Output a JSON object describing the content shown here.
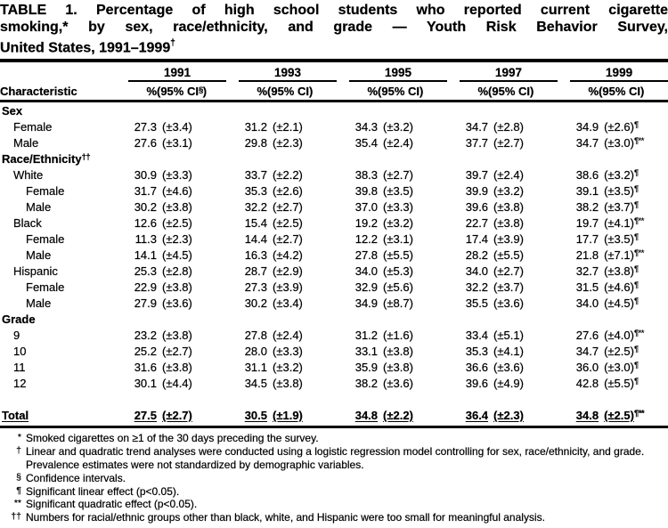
{
  "colors": {
    "text": "#000000",
    "background": "#ffffff",
    "rules": "#000000"
  },
  "document": {
    "title": {
      "line1": "TABLE 1. Percentage of high school students who reported current cigarette",
      "line2": "smoking,* by sex, race/ethnicity, and grade — Youth Risk Behavior Survey,",
      "line3": "United States, 1991–1999",
      "line3_superscript": "†"
    },
    "table": {
      "characteristic_header": "Characteristic",
      "year_groups": [
        {
          "year": "1991",
          "pct_label": "%",
          "ci_label_pre": "(95% CI",
          "ci_label_sup": "§",
          "ci_label_post": ")"
        },
        {
          "year": "1993",
          "pct_label": "%",
          "ci_label_pre": "(95% CI",
          "ci_label_sup": "",
          "ci_label_post": ")"
        },
        {
          "year": "1995",
          "pct_label": "%",
          "ci_label_pre": "(95% CI",
          "ci_label_sup": "",
          "ci_label_post": ")"
        },
        {
          "year": "1997",
          "pct_label": "%",
          "ci_label_pre": "(95% CI",
          "ci_label_sup": "",
          "ci_label_post": ")"
        },
        {
          "year": "1999",
          "pct_label": "%",
          "ci_label_pre": "(95% CI",
          "ci_label_sup": "",
          "ci_label_post": ")"
        }
      ],
      "rows": [
        {
          "type": "section",
          "label": "Sex",
          "label_sup": ""
        },
        {
          "type": "data",
          "label": "Female",
          "indent": 1,
          "cells": [
            [
              "27.3",
              "(±3.4)",
              ""
            ],
            [
              "31.2",
              "(±2.1)",
              ""
            ],
            [
              "34.3",
              "(±3.2)",
              ""
            ],
            [
              "34.7",
              "(±2.8)",
              ""
            ],
            [
              "34.9",
              "(±2.6)",
              "¶"
            ]
          ]
        },
        {
          "type": "data",
          "label": "Male",
          "indent": 1,
          "cells": [
            [
              "27.6",
              "(±3.1)",
              ""
            ],
            [
              "29.8",
              "(±2.3)",
              ""
            ],
            [
              "35.4",
              "(±2.4)",
              ""
            ],
            [
              "37.7",
              "(±2.7)",
              ""
            ],
            [
              "34.7",
              "(±3.0)",
              "¶**"
            ]
          ]
        },
        {
          "type": "section",
          "label": "Race/Ethnicity",
          "label_sup": "††"
        },
        {
          "type": "data",
          "label": "White",
          "indent": 1,
          "cells": [
            [
              "30.9",
              "(±3.3)",
              ""
            ],
            [
              "33.7",
              "(±2.2)",
              ""
            ],
            [
              "38.3",
              "(±2.7)",
              ""
            ],
            [
              "39.7",
              "(±2.4)",
              ""
            ],
            [
              "38.6",
              "(±3.2)",
              "¶"
            ]
          ]
        },
        {
          "type": "data",
          "label": "Female",
          "indent": 2,
          "cells": [
            [
              "31.7",
              "(±4.6)",
              ""
            ],
            [
              "35.3",
              "(±2.6)",
              ""
            ],
            [
              "39.8",
              "(±3.5)",
              ""
            ],
            [
              "39.9",
              "(±3.2)",
              ""
            ],
            [
              "39.1",
              "(±3.5)",
              "¶"
            ]
          ]
        },
        {
          "type": "data",
          "label": "Male",
          "indent": 2,
          "cells": [
            [
              "30.2",
              "(±3.8)",
              ""
            ],
            [
              "32.2",
              "(±2.7)",
              ""
            ],
            [
              "37.0",
              "(±3.3)",
              ""
            ],
            [
              "39.6",
              "(±3.8)",
              ""
            ],
            [
              "38.2",
              "(±3.7)",
              "¶"
            ]
          ]
        },
        {
          "type": "data",
          "label": "Black",
          "indent": 1,
          "cells": [
            [
              "12.6",
              "(±2.5)",
              ""
            ],
            [
              "15.4",
              "(±2.5)",
              ""
            ],
            [
              "19.2",
              "(±3.2)",
              ""
            ],
            [
              "22.7",
              "(±3.8)",
              ""
            ],
            [
              "19.7",
              "(±4.1)",
              "¶**"
            ]
          ]
        },
        {
          "type": "data",
          "label": "Female",
          "indent": 2,
          "cells": [
            [
              "11.3",
              "(±2.3)",
              ""
            ],
            [
              "14.4",
              "(±2.7)",
              ""
            ],
            [
              "12.2",
              "(±3.1)",
              ""
            ],
            [
              "17.4",
              "(±3.9)",
              ""
            ],
            [
              "17.7",
              "(±3.5)",
              "¶"
            ]
          ]
        },
        {
          "type": "data",
          "label": "Male",
          "indent": 2,
          "cells": [
            [
              "14.1",
              "(±4.5)",
              ""
            ],
            [
              "16.3",
              "(±4.2)",
              ""
            ],
            [
              "27.8",
              "(±5.5)",
              ""
            ],
            [
              "28.2",
              "(±5.5)",
              ""
            ],
            [
              "21.8",
              "(±7.1)",
              "¶**"
            ]
          ]
        },
        {
          "type": "data",
          "label": "Hispanic",
          "indent": 1,
          "cells": [
            [
              "25.3",
              "(±2.8)",
              ""
            ],
            [
              "28.7",
              "(±2.9)",
              ""
            ],
            [
              "34.0",
              "(±5.3)",
              ""
            ],
            [
              "34.0",
              "(±2.7)",
              ""
            ],
            [
              "32.7",
              "(±3.8)",
              "¶"
            ]
          ]
        },
        {
          "type": "data",
          "label": "Female",
          "indent": 2,
          "cells": [
            [
              "22.9",
              "(±3.8)",
              ""
            ],
            [
              "27.3",
              "(±3.9)",
              ""
            ],
            [
              "32.9",
              "(±5.6)",
              ""
            ],
            [
              "32.2",
              "(±3.7)",
              ""
            ],
            [
              "31.5",
              "(±4.6)",
              "¶"
            ]
          ]
        },
        {
          "type": "data",
          "label": "Male",
          "indent": 2,
          "cells": [
            [
              "27.9",
              "(±3.6)",
              ""
            ],
            [
              "30.2",
              "(±3.4)",
              ""
            ],
            [
              "34.9",
              "(±8.7)",
              ""
            ],
            [
              "35.5",
              "(±3.6)",
              ""
            ],
            [
              "34.0",
              "(±4.5)",
              "¶"
            ]
          ]
        },
        {
          "type": "section",
          "label": "Grade",
          "label_sup": ""
        },
        {
          "type": "data",
          "label": "9",
          "indent": 1,
          "cells": [
            [
              "23.2",
              "(±3.8)",
              ""
            ],
            [
              "27.8",
              "(±2.4)",
              ""
            ],
            [
              "31.2",
              "(±1.6)",
              ""
            ],
            [
              "33.4",
              "(±5.1)",
              ""
            ],
            [
              "27.6",
              "(±4.0)",
              "¶**"
            ]
          ]
        },
        {
          "type": "data",
          "label": "10",
          "indent": 1,
          "cells": [
            [
              "25.2",
              "(±2.7)",
              ""
            ],
            [
              "28.0",
              "(±3.3)",
              ""
            ],
            [
              "33.1",
              "(±3.8)",
              ""
            ],
            [
              "35.3",
              "(±4.1)",
              ""
            ],
            [
              "34.7",
              "(±2.5)",
              "¶"
            ]
          ]
        },
        {
          "type": "data",
          "label": "11",
          "indent": 1,
          "cells": [
            [
              "31.6",
              "(±3.8)",
              ""
            ],
            [
              "31.1",
              "(±3.2)",
              ""
            ],
            [
              "35.9",
              "(±3.8)",
              ""
            ],
            [
              "36.6",
              "(±3.6)",
              ""
            ],
            [
              "36.0",
              "(±3.0)",
              "¶"
            ]
          ]
        },
        {
          "type": "data",
          "label": "12",
          "indent": 1,
          "cells": [
            [
              "30.1",
              "(±4.4)",
              ""
            ],
            [
              "34.5",
              "(±3.8)",
              ""
            ],
            [
              "38.2",
              "(±3.6)",
              ""
            ],
            [
              "39.6",
              "(±4.9)",
              ""
            ],
            [
              "42.8",
              "(±5.5)",
              "¶"
            ]
          ]
        },
        {
          "type": "spacer"
        },
        {
          "type": "total",
          "label": "Total",
          "indent": 0,
          "cells": [
            [
              "27.5",
              "(±2.7)",
              ""
            ],
            [
              "30.5",
              "(±1.9)",
              ""
            ],
            [
              "34.8",
              "(±2.2)",
              ""
            ],
            [
              "36.4",
              "(±2.3)",
              ""
            ],
            [
              "34.8",
              "(±2.5)",
              "¶**"
            ]
          ]
        }
      ]
    },
    "footnotes": [
      {
        "marker": "*",
        "text": "Smoked cigarettes on ≥1 of the 30 days preceding the survey."
      },
      {
        "marker": "†",
        "text": "Linear and quadratic trend analyses were conducted using a logistic regression model controlling for sex, race/ethnicity, and grade.  Prevalence estimates were not standardized by demographic variables."
      },
      {
        "marker": "§",
        "text": "Confidence intervals."
      },
      {
        "marker": "¶",
        "text": "Significant linear effect (p<0.05)."
      },
      {
        "marker": "**",
        "text": "Significant quadratic effect (p<0.05)."
      },
      {
        "marker": "††",
        "text": "Numbers for racial/ethnic groups other than black, white, and Hispanic were too small for meaningful analysis."
      }
    ]
  }
}
